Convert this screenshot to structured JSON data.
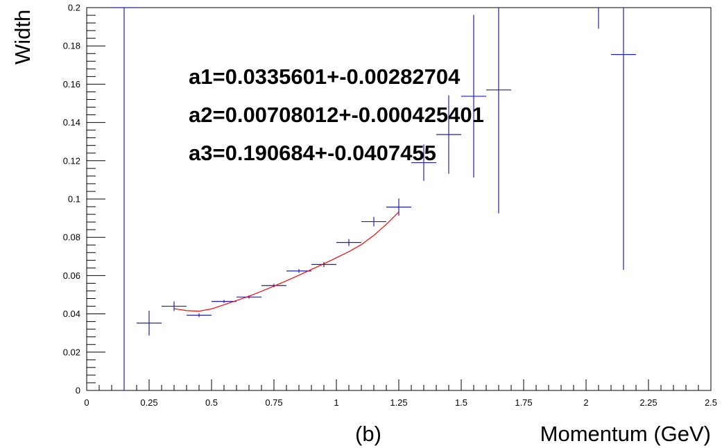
{
  "chart_data": {
    "type": "scatter",
    "xlabel": "Momentum (GeV)",
    "ylabel": "Width",
    "panel_label": "(b)",
    "xlim": [
      0,
      2.5
    ],
    "ylim": [
      0,
      0.2
    ],
    "x_ticks": [
      "0",
      "0.25",
      "0.5",
      "0.75",
      "1",
      "1.25",
      "1.5",
      "1.75",
      "2",
      "2.25",
      "2.5"
    ],
    "y_ticks": [
      "0",
      "0.02",
      "0.04",
      "0.06",
      "0.08",
      "0.1",
      "0.12",
      "0.14",
      "0.16",
      "0.18",
      "0.2"
    ],
    "grid": false,
    "series": [
      {
        "kind": "points-with-error-bars",
        "color": "#1f1fb4",
        "x_halfwidth": 0.05,
        "points": [
          {
            "x": 0.15,
            "y": 0.2,
            "yerr_low": 0.2,
            "yerr_high": 0.1
          },
          {
            "x": 0.25,
            "y": 0.0352,
            "yerr_low": 0.0065,
            "yerr_high": 0.0065
          },
          {
            "x": 0.35,
            "y": 0.044,
            "yerr_low": 0.0025,
            "yerr_high": 0.0025
          },
          {
            "x": 0.45,
            "y": 0.0393,
            "yerr_low": 0.001,
            "yerr_high": 0.001
          },
          {
            "x": 0.55,
            "y": 0.0465,
            "yerr_low": 0.0008,
            "yerr_high": 0.0008
          },
          {
            "x": 0.65,
            "y": 0.0488,
            "yerr_low": 0.0008,
            "yerr_high": 0.0008
          },
          {
            "x": 0.75,
            "y": 0.0548,
            "yerr_low": 0.0009,
            "yerr_high": 0.0009
          },
          {
            "x": 0.85,
            "y": 0.0624,
            "yerr_low": 0.001,
            "yerr_high": 0.001
          },
          {
            "x": 0.95,
            "y": 0.0658,
            "yerr_low": 0.0013,
            "yerr_high": 0.0013
          },
          {
            "x": 1.05,
            "y": 0.0773,
            "yerr_low": 0.0018,
            "yerr_high": 0.0018
          },
          {
            "x": 1.15,
            "y": 0.0882,
            "yerr_low": 0.0025,
            "yerr_high": 0.0025
          },
          {
            "x": 1.25,
            "y": 0.0958,
            "yerr_low": 0.0045,
            "yerr_high": 0.0045
          },
          {
            "x": 1.35,
            "y": 0.119,
            "yerr_low": 0.0095,
            "yerr_high": 0.0095
          },
          {
            "x": 1.45,
            "y": 0.1337,
            "yerr_low": 0.0205,
            "yerr_high": 0.0205
          },
          {
            "x": 1.55,
            "y": 0.1537,
            "yerr_low": 0.0425,
            "yerr_high": 0.0425
          },
          {
            "x": 1.65,
            "y": 0.157,
            "yerr_low": 0.0645,
            "yerr_high": 0.0645
          },
          {
            "x": 2.05,
            "y": 0.205,
            "yerr_low": 0.016,
            "yerr_high": 0.016
          },
          {
            "x": 2.15,
            "y": 0.1755,
            "yerr_low": 0.1125,
            "yerr_high": 0.1125
          }
        ]
      },
      {
        "kind": "fit-curve",
        "color": "#ff0000",
        "x": [
          0.35,
          0.4,
          0.45,
          0.5,
          0.55,
          0.6,
          0.65,
          0.7,
          0.75,
          0.8,
          0.85,
          0.9,
          0.95,
          1.0,
          1.05,
          1.1,
          1.15,
          1.2,
          1.25
        ],
        "y": [
          0.0427,
          0.0417,
          0.0414,
          0.0426,
          0.0448,
          0.047,
          0.0492,
          0.0518,
          0.0545,
          0.0573,
          0.0602,
          0.0632,
          0.0662,
          0.0693,
          0.0725,
          0.0762,
          0.081,
          0.0868,
          0.0933
        ]
      }
    ],
    "annotations": [
      {
        "text": "a1=0.0335601+-0.00282704"
      },
      {
        "text": "a2=0.00708012+-0.000425401"
      },
      {
        "text": "a3=0.190684+-0.0407455"
      }
    ]
  }
}
